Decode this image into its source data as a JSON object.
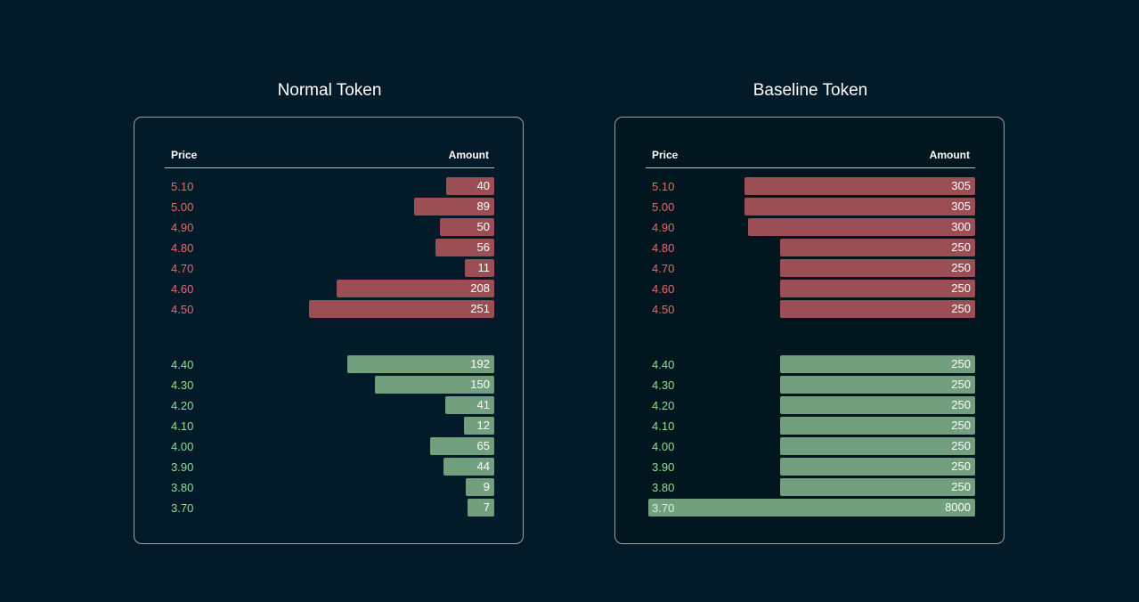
{
  "chart_data": [
    {
      "type": "bar",
      "title": "Normal Token",
      "columns": [
        "Price",
        "Amount"
      ],
      "asks": [
        {
          "price": "5.10",
          "amount": 40
        },
        {
          "price": "5.00",
          "amount": 89
        },
        {
          "price": "4.90",
          "amount": 50
        },
        {
          "price": "4.80",
          "amount": 56
        },
        {
          "price": "4.70",
          "amount": 11
        },
        {
          "price": "4.60",
          "amount": 208
        },
        {
          "price": "4.50",
          "amount": 251
        }
      ],
      "bids": [
        {
          "price": "4.40",
          "amount": 192
        },
        {
          "price": "4.30",
          "amount": 150
        },
        {
          "price": "4.20",
          "amount": 41
        },
        {
          "price": "4.10",
          "amount": 12
        },
        {
          "price": "4.00",
          "amount": 65
        },
        {
          "price": "3.90",
          "amount": 44
        },
        {
          "price": "3.80",
          "amount": 9
        },
        {
          "price": "3.70",
          "amount": 7
        }
      ],
      "ask_color": "#9b4f55",
      "bid_color": "#72a07e"
    },
    {
      "type": "bar",
      "title": "Baseline Token",
      "columns": [
        "Price",
        "Amount"
      ],
      "asks": [
        {
          "price": "5.10",
          "amount": 305
        },
        {
          "price": "5.00",
          "amount": 305
        },
        {
          "price": "4.90",
          "amount": 300
        },
        {
          "price": "4.80",
          "amount": 250
        },
        {
          "price": "4.70",
          "amount": 250
        },
        {
          "price": "4.60",
          "amount": 250
        },
        {
          "price": "4.50",
          "amount": 250
        }
      ],
      "bids": [
        {
          "price": "4.40",
          "amount": 250
        },
        {
          "price": "4.30",
          "amount": 250
        },
        {
          "price": "4.20",
          "amount": 250
        },
        {
          "price": "4.10",
          "amount": 250
        },
        {
          "price": "4.00",
          "amount": 250
        },
        {
          "price": "3.90",
          "amount": 250
        },
        {
          "price": "3.80",
          "amount": 250
        },
        {
          "price": "3.70",
          "amount": 8000
        }
      ],
      "ask_color": "#9b4f55",
      "bid_color": "#72a07e"
    }
  ]
}
